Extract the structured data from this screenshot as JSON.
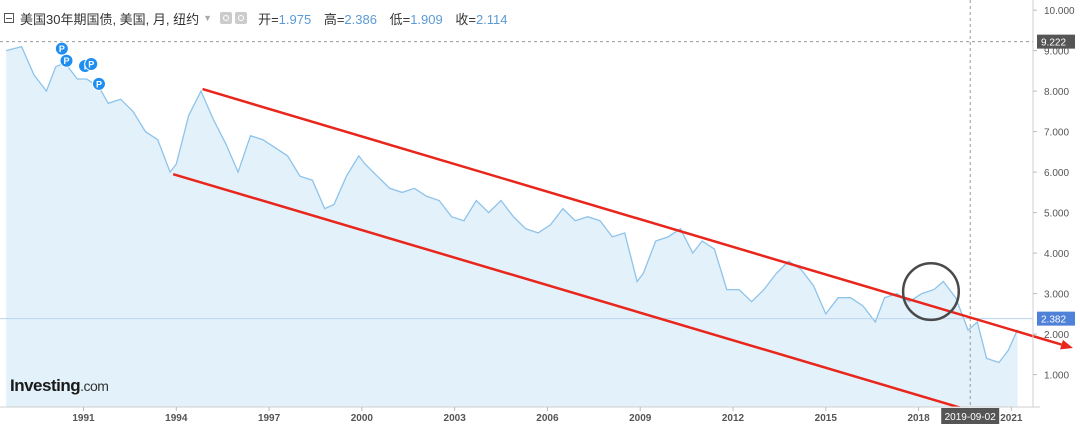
{
  "header": {
    "symbol": "美国30年期国债, 美国, 月, 纽约",
    "open_label": "开=",
    "open_value": "1.975",
    "high_label": "高=",
    "high_value": "2.386",
    "low_label": "低=",
    "low_value": "1.909",
    "close_label": "收=",
    "close_value": "2.114"
  },
  "logo": {
    "text": "Investing",
    "suffix": ".com"
  },
  "colors": {
    "series": "#8ec3ea",
    "fill": "#e3f1fb",
    "channel": "#e8261c",
    "price_badge": "#4f81d8",
    "crosshair_badge": "#555555"
  },
  "chart_data": {
    "type": "area",
    "title": "美国30年期国债",
    "x": [
      1988.5,
      1989.0,
      1989.4,
      1989.8,
      1990.1,
      1990.4,
      1990.8,
      1991.1,
      1991.5,
      1991.8,
      1992.2,
      1992.6,
      1993.0,
      1993.4,
      1993.8,
      1994.0,
      1994.4,
      1994.8,
      1995.2,
      1995.6,
      1996.0,
      1996.4,
      1996.8,
      1997.2,
      1997.6,
      1998.0,
      1998.4,
      1998.8,
      1999.1,
      1999.5,
      1999.9,
      2000.1,
      2000.5,
      2000.9,
      2001.3,
      2001.7,
      2002.1,
      2002.5,
      2002.9,
      2003.3,
      2003.7,
      2004.1,
      2004.5,
      2004.9,
      2005.3,
      2005.7,
      2006.1,
      2006.5,
      2006.9,
      2007.3,
      2007.7,
      2008.1,
      2008.5,
      2008.9,
      2009.1,
      2009.5,
      2009.9,
      2010.3,
      2010.7,
      2011.0,
      2011.4,
      2011.8,
      2012.2,
      2012.6,
      2013.0,
      2013.4,
      2013.8,
      2014.2,
      2014.6,
      2015.0,
      2015.4,
      2015.8,
      2016.2,
      2016.6,
      2016.9,
      2017.3,
      2017.7,
      2018.1,
      2018.5,
      2018.8,
      2019.2,
      2019.6,
      2019.9,
      2020.2,
      2020.6,
      2020.9,
      2021.2
    ],
    "y": [
      9.0,
      9.1,
      8.4,
      8.0,
      8.6,
      8.7,
      8.3,
      8.3,
      8.1,
      7.7,
      7.8,
      7.5,
      7.0,
      6.8,
      6.0,
      6.2,
      7.4,
      8.0,
      7.3,
      6.7,
      6.0,
      6.9,
      6.8,
      6.6,
      6.4,
      5.9,
      5.8,
      5.1,
      5.2,
      5.9,
      6.4,
      6.2,
      5.9,
      5.6,
      5.5,
      5.6,
      5.4,
      5.3,
      4.9,
      4.8,
      5.3,
      5.0,
      5.3,
      4.9,
      4.6,
      4.5,
      4.7,
      5.1,
      4.8,
      4.9,
      4.8,
      4.4,
      4.5,
      3.3,
      3.5,
      4.3,
      4.4,
      4.6,
      4.0,
      4.3,
      4.1,
      3.1,
      3.1,
      2.8,
      3.1,
      3.5,
      3.8,
      3.6,
      3.2,
      2.5,
      2.9,
      2.9,
      2.7,
      2.3,
      2.9,
      3.0,
      2.8,
      3.0,
      3.1,
      3.3,
      2.9,
      2.1,
      2.3,
      1.4,
      1.3,
      1.6,
      2.11
    ],
    "xlim": [
      1988.3,
      2021.7
    ],
    "ylim": [
      0.2,
      10.25
    ],
    "xticks": [
      {
        "label": "1991",
        "value": 1991.0
      },
      {
        "label": "1994",
        "value": 1994.0
      },
      {
        "label": "1997",
        "value": 1997.0
      },
      {
        "label": "2000",
        "value": 2000.0
      },
      {
        "label": "2003",
        "value": 2003.0
      },
      {
        "label": "2006",
        "value": 2006.0
      },
      {
        "label": "2009",
        "value": 2009.0
      },
      {
        "label": "2012",
        "value": 2012.0
      },
      {
        "label": "2015",
        "value": 2015.0
      },
      {
        "label": "2018",
        "value": 2018.0
      },
      {
        "label": "2021",
        "value": 2021.0
      }
    ],
    "yticks": [
      {
        "label": "10.000",
        "value": 10
      },
      {
        "label": "9.000",
        "value": 9
      },
      {
        "label": "8.000",
        "value": 8
      },
      {
        "label": "7.000",
        "value": 7
      },
      {
        "label": "6.000",
        "value": 6
      },
      {
        "label": "5.000",
        "value": 5
      },
      {
        "label": "4.000",
        "value": 4
      },
      {
        "label": "3.000",
        "value": 3
      },
      {
        "label": "2.000",
        "value": 2
      },
      {
        "label": "1.000",
        "value": 1
      }
    ],
    "price_line": {
      "label": "2.382",
      "value": 2.382
    },
    "crosshair": {
      "y_label": "9.222",
      "y": 9.222,
      "x_label": "2019-09-02",
      "x": 2019.67
    },
    "channel_upper": {
      "from": [
        1994.85,
        8.05
      ],
      "to": [
        2021.7,
        1.95
      ]
    },
    "channel_lower": {
      "from": [
        1993.9,
        5.95
      ],
      "to": [
        2021.7,
        -0.35
      ]
    },
    "highlight_circle": {
      "cx": 2018.4,
      "cy": 3.05,
      "rx": 0.9,
      "ry": 0.7
    },
    "event_flags": [
      {
        "label": "P",
        "x": 1990.3,
        "y": 9.05
      },
      {
        "label": "P",
        "x": 1990.45,
        "y": 8.75
      },
      {
        "label": "I",
        "x": 1991.05,
        "y": 8.62
      },
      {
        "label": "P",
        "x": 1991.25,
        "y": 8.67
      },
      {
        "label": "P",
        "x": 1991.5,
        "y": 8.18
      }
    ]
  }
}
